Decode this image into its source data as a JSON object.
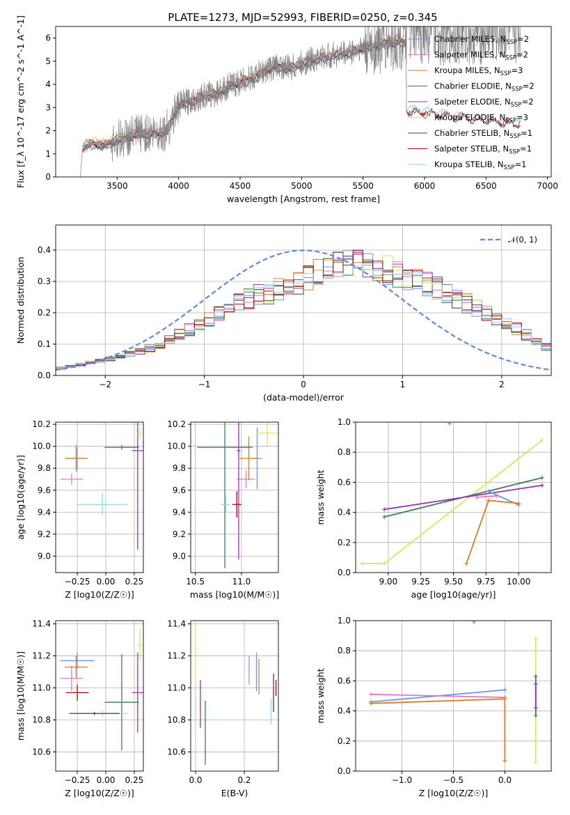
{
  "figure": {
    "title": "PLATE=1273, MJD=52993, FIBERID=0250, z=0.345"
  },
  "models": [
    {
      "name": "Chabrier MILES",
      "nssp": "2",
      "color": "#6495ed"
    },
    {
      "name": "Salpeter MILES",
      "nssp": "2",
      "color": "#e377c2"
    },
    {
      "name": "Kroupa MILES",
      "nssp": "3",
      "color": "#e07a1f"
    },
    {
      "name": "Chabrier ELODIE",
      "nssp": "2",
      "color": "#3d7a55"
    },
    {
      "name": "Salpeter ELODIE",
      "nssp": "2",
      "color": "#9b30b0"
    },
    {
      "name": "Kroupa ELODIE",
      "nssp": "3",
      "color": "#d4ea5a"
    },
    {
      "name": "Chabrier STELIB",
      "nssp": "1",
      "color": "#404040"
    },
    {
      "name": "Salpeter STELIB",
      "nssp": "1",
      "color": "#b00000"
    },
    {
      "name": "Kroupa STELIB",
      "nssp": "1",
      "color": "#8fd8e8"
    }
  ],
  "chart_data": [
    {
      "id": "spectrum",
      "type": "line",
      "xlabel": "wavelength [Angstrom, rest frame]",
      "ylabel": "Flux [f_λ 10^-17 erg cm^-2 s^-1 A^-1]",
      "xlim": [
        3000,
        7030
      ],
      "ylim": [
        0,
        6.5
      ],
      "xticks": [
        3500,
        4000,
        4500,
        5000,
        5500,
        6000,
        6500,
        7000
      ],
      "yticks": [
        0,
        1,
        2,
        3,
        4,
        5,
        6
      ],
      "data_color": "#808080",
      "data_range": [
        3200,
        6780
      ],
      "continuum": [
        [
          3200,
          0
        ],
        [
          3220,
          1.3
        ],
        [
          3300,
          1.45
        ],
        [
          3400,
          1.4
        ],
        [
          3500,
          1.6
        ],
        [
          3600,
          1.75
        ],
        [
          3700,
          1.9
        ],
        [
          3800,
          1.9
        ],
        [
          3900,
          2.0
        ],
        [
          4000,
          3.1
        ],
        [
          4100,
          3.3
        ],
        [
          4200,
          3.5
        ],
        [
          4300,
          3.6
        ],
        [
          4400,
          3.9
        ],
        [
          4500,
          4.1
        ],
        [
          4600,
          4.3
        ],
        [
          4700,
          4.6
        ],
        [
          4800,
          4.8
        ],
        [
          4900,
          4.7
        ],
        [
          5000,
          4.9
        ],
        [
          5100,
          5.1
        ],
        [
          5200,
          5.2
        ],
        [
          5300,
          5.3
        ],
        [
          5400,
          5.4
        ],
        [
          5500,
          5.6
        ],
        [
          5600,
          5.7
        ],
        [
          5700,
          5.8
        ],
        [
          5800,
          5.9
        ],
        [
          5850,
          5.8
        ]
      ],
      "legend_loc": "upper right"
    },
    {
      "id": "residuals",
      "type": "histogram",
      "xlabel": "(data-model)/error",
      "ylabel": "Normed distribution",
      "xlim": [
        -2.5,
        2.5
      ],
      "ylim": [
        0,
        0.48
      ],
      "xticks": [
        -2,
        -1,
        0,
        1,
        2
      ],
      "yticks": [
        0.0,
        0.1,
        0.2,
        0.3,
        0.4
      ],
      "bin_width": 0.1,
      "envelope": [
        [
          -2.5,
          0.02
        ],
        [
          -2.0,
          0.05
        ],
        [
          -1.5,
          0.09
        ],
        [
          -1.0,
          0.17
        ],
        [
          -0.6,
          0.24
        ],
        [
          -0.2,
          0.28
        ],
        [
          0.0,
          0.3
        ],
        [
          0.3,
          0.35
        ],
        [
          0.5,
          0.37
        ],
        [
          0.7,
          0.35
        ],
        [
          1.0,
          0.32
        ],
        [
          1.3,
          0.29
        ],
        [
          1.6,
          0.24
        ],
        [
          1.9,
          0.19
        ],
        [
          2.2,
          0.14
        ],
        [
          2.5,
          0.08
        ]
      ],
      "gaussian_label": "𝒩(0, 1)",
      "gaussian_color": "#5b8bd9"
    },
    {
      "id": "age_vs_z",
      "type": "errorbar",
      "xlabel": "Z [log10(Z/Z☉)]",
      "ylabel": "age [log10(age/yr)]",
      "xlim": [
        -0.44,
        0.33
      ],
      "ylim": [
        8.85,
        10.22
      ],
      "xticks": [
        -0.25,
        0.0,
        0.25
      ],
      "yticks": [
        9.0,
        9.2,
        9.4,
        9.6,
        9.8,
        10.0,
        10.2
      ],
      "points": [
        {
          "m": 0,
          "x": -0.25,
          "y": 9.89,
          "xe": 0.09,
          "ye": 0.1
        },
        {
          "m": 1,
          "x": -0.3,
          "y": 9.7,
          "xe": 0.1,
          "ye": 0.05
        },
        {
          "m": 2,
          "x": -0.26,
          "y": 9.89,
          "xe": 0.1,
          "ye": 0.12
        },
        {
          "m": 3,
          "x": 0.14,
          "y": 9.99,
          "xe": 0.15,
          "ye": 0.02
        },
        {
          "m": 4,
          "x": 0.28,
          "y": 9.96,
          "xe": 0.05,
          "ye": 0.9
        },
        {
          "m": 5,
          "x": 0.3,
          "y": 10.12,
          "xe": 0.02,
          "ye": 0.05
        },
        {
          "m": 8,
          "x": -0.03,
          "y": 9.47,
          "xe": 0.22,
          "ye": 0.1
        }
      ]
    },
    {
      "id": "age_vs_mass",
      "type": "errorbar",
      "xlabel": "mass [log10(M/M☉)]",
      "ylabel": "",
      "xlim": [
        10.45,
        11.4
      ],
      "ylim": [
        8.85,
        10.22
      ],
      "xticks": [
        10.5,
        11.0
      ],
      "yticks": [
        9.0,
        9.2,
        9.4,
        9.6,
        9.8,
        10.0,
        10.2
      ],
      "points": [
        {
          "m": 0,
          "x": 11.17,
          "y": 9.89,
          "xe": 0.05,
          "ye": 0.28
        },
        {
          "m": 1,
          "x": 11.05,
          "y": 9.7,
          "xe": 0.1,
          "ye": 0.08
        },
        {
          "m": 2,
          "x": 11.08,
          "y": 9.89,
          "xe": 0.1,
          "ye": 0.2
        },
        {
          "m": 3,
          "x": 10.82,
          "y": 9.99,
          "xe": 0.3,
          "ye": 1.1
        },
        {
          "m": 4,
          "x": 10.97,
          "y": 9.96,
          "xe": 0.02,
          "ye": 0.99
        },
        {
          "m": 5,
          "x": 11.28,
          "y": 10.12,
          "xe": 0.12,
          "ye": 0.12
        },
        {
          "m": 7,
          "x": 10.95,
          "y": 9.47,
          "xe": 0.05,
          "ye": 0.12
        },
        {
          "m": 8,
          "x": 10.83,
          "y": 9.47,
          "xe": 0.05,
          "ye": 0.08
        }
      ]
    },
    {
      "id": "weight_vs_age",
      "type": "line",
      "xlabel": "age [log10(age/yr)]",
      "ylabel": "mass weight",
      "xlim": [
        8.75,
        10.25
      ],
      "ylim": [
        0,
        1.0
      ],
      "xticks": [
        9.0,
        9.25,
        9.5,
        9.75,
        10.0
      ],
      "yticks": [
        0.0,
        0.2,
        0.4,
        0.6,
        0.8,
        1.0
      ],
      "series": [
        {
          "m": 5,
          "x": [
            8.8,
            8.97,
            10.18
          ],
          "y": [
            0.06,
            0.06,
            0.88
          ]
        },
        {
          "m": 3,
          "x": [
            8.97,
            10.18
          ],
          "y": [
            0.37,
            0.63
          ]
        },
        {
          "m": 4,
          "x": [
            8.97,
            10.18
          ],
          "y": [
            0.42,
            0.58
          ]
        },
        {
          "m": 1,
          "x": [
            9.68,
            9.83
          ],
          "y": [
            0.5,
            0.51
          ]
        },
        {
          "m": 0,
          "x": [
            9.77,
            10.0
          ],
          "y": [
            0.54,
            0.45
          ]
        },
        {
          "m": 2,
          "x": [
            9.6,
            9.77,
            10.0
          ],
          "y": [
            0.06,
            0.48,
            0.46
          ]
        },
        {
          "m": 6,
          "x": [
            9.47
          ],
          "y": [
            0.99
          ]
        }
      ]
    },
    {
      "id": "mass_vs_z",
      "type": "errorbar",
      "xlabel": "Z [log10(Z/Z☉)]",
      "ylabel": "mass [log10(M/M☉)]",
      "xlim": [
        -0.44,
        0.33
      ],
      "ylim": [
        10.48,
        11.42
      ],
      "xticks": [
        -0.25,
        0.0,
        0.25
      ],
      "yticks": [
        10.6,
        10.8,
        11.0,
        11.2,
        11.4
      ],
      "points": [
        {
          "m": 0,
          "x": -0.25,
          "y": 11.17,
          "xe": 0.15,
          "ye": 0.05
        },
        {
          "m": 1,
          "x": -0.3,
          "y": 11.06,
          "xe": 0.1,
          "ye": 0.08
        },
        {
          "m": 2,
          "x": -0.26,
          "y": 11.13,
          "xe": 0.1,
          "ye": 0.07
        },
        {
          "m": 3,
          "x": 0.14,
          "y": 10.91,
          "xe": 0.15,
          "ye": 0.3
        },
        {
          "m": 4,
          "x": 0.28,
          "y": 10.97,
          "xe": 0.05,
          "ye": 0.25
        },
        {
          "m": 5,
          "x": 0.3,
          "y": 11.27,
          "xe": 0.02,
          "ye": 0.1
        },
        {
          "m": 7,
          "x": -0.25,
          "y": 10.97,
          "xe": 0.1,
          "ye": 0.05
        },
        {
          "m": 8,
          "x": -0.03,
          "y": 10.84,
          "xe": 0.22,
          "ye": 0.02
        },
        {
          "m": 6,
          "x": -0.1,
          "y": 10.84,
          "xe": 0.22,
          "ye": 0.01
        }
      ]
    },
    {
      "id": "mass_vs_ebv",
      "type": "errorbar",
      "xlabel": "E(B-V)",
      "ylabel": "",
      "xlim": [
        -0.02,
        0.34
      ],
      "ylim": [
        10.48,
        11.42
      ],
      "xticks": [
        0.0,
        0.2
      ],
      "yticks": [
        10.6,
        10.8,
        11.0,
        11.2,
        11.4
      ],
      "points": [
        {
          "m": 5,
          "x": 0.0,
          "y": 11.27,
          "xe": 0.0,
          "ye": 0.22
        },
        {
          "m": 4,
          "x": 0.02,
          "y": 10.9,
          "xe": 0.0,
          "ye": 0.15
        },
        {
          "m": 3,
          "x": 0.04,
          "y": 10.72,
          "xe": 0.0,
          "ye": 0.2
        },
        {
          "m": 1,
          "x": 0.22,
          "y": 11.11,
          "xe": 0.0,
          "ye": 0.09
        },
        {
          "m": 0,
          "x": 0.25,
          "y": 11.1,
          "xe": 0.0,
          "ye": 0.12
        },
        {
          "m": 2,
          "x": 0.26,
          "y": 11.07,
          "xe": 0.0,
          "ye": 0.11
        },
        {
          "m": 6,
          "x": 0.32,
          "y": 10.97,
          "xe": 0.0,
          "ye": 0.12
        },
        {
          "m": 7,
          "x": 0.33,
          "y": 11.0,
          "xe": 0.0,
          "ye": 0.05
        },
        {
          "m": 8,
          "x": 0.31,
          "y": 10.85,
          "xe": 0.0,
          "ye": 0.08
        }
      ]
    },
    {
      "id": "weight_vs_z",
      "type": "line",
      "xlabel": "Z [log10(Z/Z☉)]",
      "ylabel": "mass weight",
      "xlim": [
        -1.45,
        0.45
      ],
      "ylim": [
        0,
        1.0
      ],
      "xticks": [
        -1.0,
        -0.5,
        0.0
      ],
      "yticks": [
        0.0,
        0.2,
        0.4,
        0.6,
        0.8,
        1.0
      ],
      "series": [
        {
          "m": 0,
          "x": [
            -1.3,
            0.0
          ],
          "y": [
            0.46,
            0.54
          ]
        },
        {
          "m": 1,
          "x": [
            -1.3,
            0.0
          ],
          "y": [
            0.51,
            0.49
          ]
        },
        {
          "m": 2,
          "x": [
            -1.3,
            0.0,
            0.0
          ],
          "y": [
            0.45,
            0.48,
            0.07
          ]
        },
        {
          "m": 5,
          "x": [
            0.3,
            0.3
          ],
          "y": [
            0.06,
            0.88
          ]
        },
        {
          "m": 3,
          "x": [
            0.3,
            0.3
          ],
          "y": [
            0.37,
            0.63
          ]
        },
        {
          "m": 4,
          "x": [
            0.3,
            0.3
          ],
          "y": [
            0.42,
            0.58
          ]
        },
        {
          "m": 6,
          "x": [
            -0.3
          ],
          "y": [
            0.99
          ]
        }
      ]
    }
  ]
}
